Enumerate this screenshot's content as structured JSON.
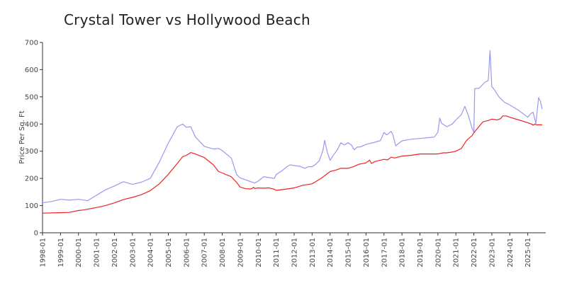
{
  "chart_data": {
    "type": "line",
    "title": "Crystal Tower vs Hollywood Beach",
    "xlabel": "",
    "ylabel": "Price Per Sq. Ft",
    "ylim": [
      0,
      700
    ],
    "yticks": [
      0,
      100,
      200,
      300,
      400,
      500,
      600,
      700
    ],
    "x_tick_labels": [
      "1998-01",
      "1999-01",
      "2000-01",
      "2001-01",
      "2002-01",
      "2003-01",
      "2004-01",
      "2005-01",
      "2006-01",
      "2007-01",
      "2008-01",
      "2009-01",
      "2010-01",
      "2011-01",
      "2012-01",
      "2013-01",
      "2014-01",
      "2015-01",
      "2016-01",
      "2017-01",
      "2018-01",
      "2019-01",
      "2020-01",
      "2021-01",
      "2022-01",
      "2023-01",
      "2024-01",
      "2025-01"
    ],
    "x_range": [
      1998.0,
      2026.0
    ],
    "series": [
      {
        "name": "Crystal Tower",
        "color": "#9999ee",
        "points": [
          [
            1998.0,
            110
          ],
          [
            1998.5,
            115
          ],
          [
            1999.0,
            123
          ],
          [
            1999.5,
            120
          ],
          [
            2000.0,
            123
          ],
          [
            2000.5,
            118
          ],
          [
            2001.0,
            138
          ],
          [
            2001.5,
            158
          ],
          [
            2002.0,
            172
          ],
          [
            2002.5,
            188
          ],
          [
            2003.0,
            178
          ],
          [
            2003.5,
            186
          ],
          [
            2004.0,
            200
          ],
          [
            2004.5,
            260
          ],
          [
            2005.0,
            330
          ],
          [
            2005.5,
            390
          ],
          [
            2005.8,
            400
          ],
          [
            2006.0,
            388
          ],
          [
            2006.25,
            390
          ],
          [
            2006.5,
            353
          ],
          [
            2007.0,
            318
          ],
          [
            2007.5,
            308
          ],
          [
            2007.8,
            310
          ],
          [
            2008.0,
            302
          ],
          [
            2008.5,
            275
          ],
          [
            2008.8,
            214
          ],
          [
            2009.0,
            202
          ],
          [
            2009.5,
            190
          ],
          [
            2009.8,
            183
          ],
          [
            2010.0,
            190
          ],
          [
            2010.3,
            206
          ],
          [
            2010.6,
            203
          ],
          [
            2010.9,
            200
          ],
          [
            2011.0,
            214
          ],
          [
            2011.3,
            227
          ],
          [
            2011.6,
            243
          ],
          [
            2011.8,
            250
          ],
          [
            2012.0,
            247
          ],
          [
            2012.3,
            245
          ],
          [
            2012.6,
            237
          ],
          [
            2012.8,
            243
          ],
          [
            2013.0,
            243
          ],
          [
            2013.2,
            252
          ],
          [
            2013.4,
            265
          ],
          [
            2013.6,
            303
          ],
          [
            2013.7,
            340
          ],
          [
            2013.85,
            296
          ],
          [
            2014.0,
            266
          ],
          [
            2014.2,
            287
          ],
          [
            2014.4,
            305
          ],
          [
            2014.6,
            331
          ],
          [
            2014.8,
            323
          ],
          [
            2015.0,
            331
          ],
          [
            2015.2,
            322
          ],
          [
            2015.35,
            305
          ],
          [
            2015.5,
            315
          ],
          [
            2015.7,
            316
          ],
          [
            2016.0,
            325
          ],
          [
            2016.5,
            333
          ],
          [
            2016.8,
            339
          ],
          [
            2017.0,
            369
          ],
          [
            2017.15,
            360
          ],
          [
            2017.4,
            373
          ],
          [
            2017.5,
            359
          ],
          [
            2017.65,
            320
          ],
          [
            2018.0,
            338
          ],
          [
            2018.5,
            344
          ],
          [
            2019.0,
            347
          ],
          [
            2019.5,
            350
          ],
          [
            2019.8,
            352
          ],
          [
            2020.0,
            370
          ],
          [
            2020.1,
            422
          ],
          [
            2020.2,
            403
          ],
          [
            2020.5,
            390
          ],
          [
            2020.8,
            400
          ],
          [
            2021.0,
            415
          ],
          [
            2021.3,
            434
          ],
          [
            2021.5,
            465
          ],
          [
            2021.7,
            430
          ],
          [
            2021.9,
            385
          ],
          [
            2022.0,
            370
          ],
          [
            2022.05,
            530
          ],
          [
            2022.3,
            532
          ],
          [
            2022.6,
            553
          ],
          [
            2022.8,
            560
          ],
          [
            2022.9,
            670
          ],
          [
            2023.0,
            537
          ],
          [
            2023.1,
            530
          ],
          [
            2023.4,
            500
          ],
          [
            2023.7,
            480
          ],
          [
            2024.0,
            470
          ],
          [
            2024.5,
            450
          ],
          [
            2024.9,
            430
          ],
          [
            2025.0,
            425
          ],
          [
            2025.2,
            440
          ],
          [
            2025.3,
            443
          ],
          [
            2025.45,
            402
          ],
          [
            2025.6,
            497
          ],
          [
            2025.7,
            484
          ],
          [
            2025.8,
            455
          ]
        ]
      },
      {
        "name": "Hollywood Beach",
        "color": "#ee2222",
        "points": [
          [
            1998.0,
            72
          ],
          [
            1998.5,
            73
          ],
          [
            1999.0,
            74
          ],
          [
            1999.5,
            75
          ],
          [
            2000.0,
            82
          ],
          [
            2000.3,
            84
          ],
          [
            2000.6,
            88
          ],
          [
            2001.0,
            93
          ],
          [
            2001.5,
            100
          ],
          [
            2002.0,
            110
          ],
          [
            2002.5,
            122
          ],
          [
            2003.0,
            130
          ],
          [
            2003.5,
            140
          ],
          [
            2004.0,
            155
          ],
          [
            2004.5,
            180
          ],
          [
            2005.0,
            215
          ],
          [
            2005.5,
            255
          ],
          [
            2005.8,
            280
          ],
          [
            2006.0,
            285
          ],
          [
            2006.25,
            295
          ],
          [
            2006.5,
            290
          ],
          [
            2007.0,
            277
          ],
          [
            2007.5,
            250
          ],
          [
            2007.8,
            225
          ],
          [
            2008.0,
            220
          ],
          [
            2008.5,
            206
          ],
          [
            2008.8,
            185
          ],
          [
            2009.0,
            168
          ],
          [
            2009.3,
            162
          ],
          [
            2009.6,
            161
          ],
          [
            2009.75,
            167
          ],
          [
            2009.8,
            163
          ],
          [
            2010.0,
            165
          ],
          [
            2010.3,
            164
          ],
          [
            2010.6,
            165
          ],
          [
            2010.9,
            160
          ],
          [
            2011.0,
            156
          ],
          [
            2011.5,
            160
          ],
          [
            2012.0,
            165
          ],
          [
            2012.5,
            175
          ],
          [
            2013.0,
            180
          ],
          [
            2013.5,
            200
          ],
          [
            2013.7,
            210
          ],
          [
            2014.0,
            225
          ],
          [
            2014.3,
            230
          ],
          [
            2014.6,
            237
          ],
          [
            2015.0,
            237
          ],
          [
            2015.3,
            243
          ],
          [
            2015.6,
            252
          ],
          [
            2016.0,
            257
          ],
          [
            2016.2,
            267
          ],
          [
            2016.3,
            255
          ],
          [
            2016.5,
            262
          ],
          [
            2017.0,
            270
          ],
          [
            2017.2,
            268
          ],
          [
            2017.4,
            278
          ],
          [
            2017.6,
            275
          ],
          [
            2018.0,
            282
          ],
          [
            2018.5,
            285
          ],
          [
            2019.0,
            290
          ],
          [
            2019.5,
            290
          ],
          [
            2020.0,
            290
          ],
          [
            2020.3,
            294
          ],
          [
            2020.5,
            294
          ],
          [
            2020.8,
            297
          ],
          [
            2021.0,
            300
          ],
          [
            2021.3,
            310
          ],
          [
            2021.6,
            340
          ],
          [
            2021.9,
            357
          ],
          [
            2022.0,
            368
          ],
          [
            2022.5,
            408
          ],
          [
            2022.8,
            413
          ],
          [
            2023.0,
            418
          ],
          [
            2023.3,
            415
          ],
          [
            2023.5,
            420
          ],
          [
            2023.6,
            430
          ],
          [
            2023.8,
            430
          ],
          [
            2024.0,
            425
          ],
          [
            2024.5,
            415
          ],
          [
            2025.0,
            405
          ],
          [
            2025.2,
            400
          ],
          [
            2025.3,
            396
          ],
          [
            2025.4,
            400
          ],
          [
            2025.5,
            397
          ],
          [
            2025.8,
            397
          ]
        ]
      }
    ]
  }
}
